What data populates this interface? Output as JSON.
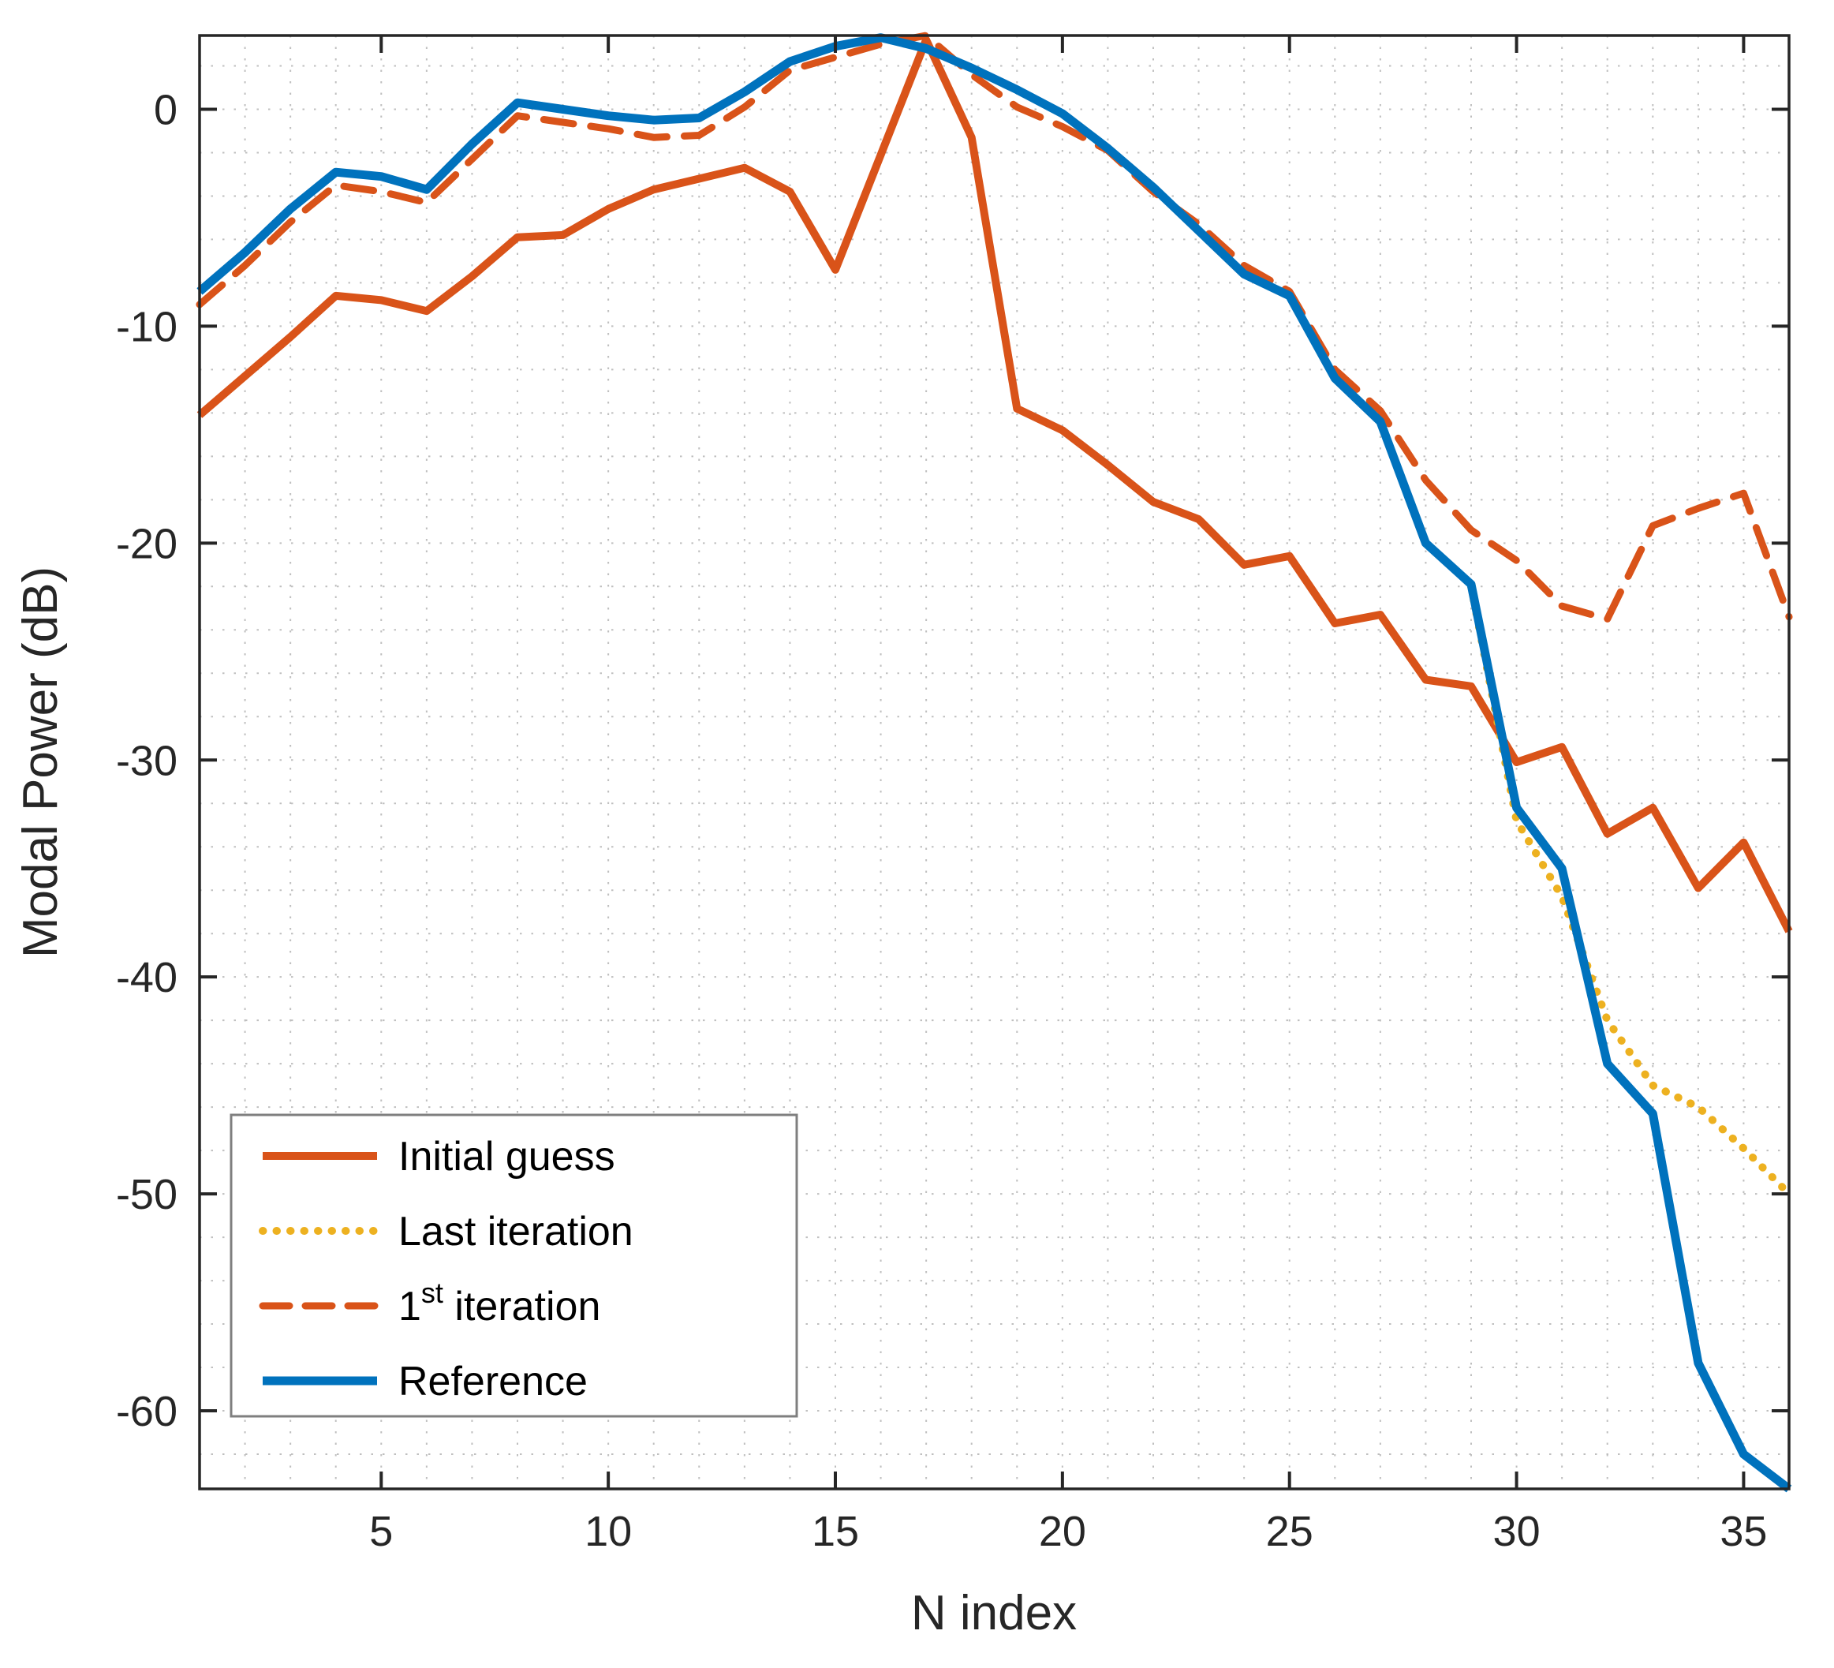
{
  "chart_data": {
    "type": "line",
    "title": "",
    "xlabel": "N index",
    "ylabel": "Modal Power (dB)",
    "xlim": [
      1,
      36
    ],
    "ylim": [
      -63.6,
      3.4
    ],
    "xticks": [
      5,
      10,
      15,
      20,
      25,
      30,
      35
    ],
    "yticks": [
      0,
      -10,
      -20,
      -30,
      -40,
      -50,
      -60
    ],
    "grid": {
      "minor_x_step": 1,
      "minor_y_step": 2,
      "style": "dotted",
      "color": "#bfbfbf"
    },
    "axes_color": "#262626",
    "background": "#ffffff",
    "legend_position": "lower-left",
    "x": [
      1,
      2,
      3,
      4,
      5,
      6,
      7,
      8,
      9,
      10,
      11,
      12,
      13,
      14,
      15,
      16,
      17,
      18,
      19,
      20,
      21,
      22,
      23,
      24,
      25,
      26,
      27,
      28,
      29,
      30,
      31,
      32,
      33,
      34,
      35,
      36
    ],
    "series": [
      {
        "name": "Initial guess",
        "color": "#D95319",
        "line": "solid",
        "width": 10,
        "values": [
          -14.1,
          -12.3,
          -10.5,
          -8.6,
          -8.8,
          -9.3,
          -7.7,
          -5.9,
          -5.8,
          -4.6,
          -3.7,
          -3.2,
          -2.7,
          -3.8,
          -7.4,
          -2.1,
          3.2,
          -1.3,
          -13.8,
          -14.8,
          -16.4,
          -18.1,
          -18.9,
          -21.0,
          -20.6,
          -23.7,
          -23.3,
          -26.3,
          -26.6,
          -30.1,
          -29.4,
          -33.4,
          -32.2,
          -35.9,
          -33.8,
          -37.9
        ]
      },
      {
        "name": "Last iteration",
        "color": "#EDB120",
        "line": "dotted",
        "width": 10,
        "x": [
          29,
          30,
          31,
          32,
          33,
          34,
          35,
          36
        ],
        "values": [
          -22.0,
          -32.8,
          -36.3,
          -42.0,
          -45.0,
          -46.0,
          -47.9,
          -50.0
        ],
        "note": "hidden behind Reference for N<29"
      },
      {
        "name": "1st iteration",
        "label_parts": {
          "pre": "1",
          "sup": "st",
          "post": " iteration"
        },
        "color": "#D95319",
        "line": "dashed",
        "width": 9,
        "values": [
          -9.0,
          -7.2,
          -5.2,
          -3.5,
          -3.8,
          -4.3,
          -2.3,
          -0.3,
          -0.6,
          -0.9,
          -1.3,
          -1.2,
          0.1,
          1.8,
          2.4,
          3.0,
          3.4,
          1.6,
          0.1,
          -0.8,
          -1.9,
          -3.8,
          -5.3,
          -7.2,
          -8.4,
          -12.0,
          -13.9,
          -17.1,
          -19.4,
          -20.8,
          -22.9,
          -23.5,
          -19.2,
          -18.4,
          -17.7,
          -23.4
        ]
      },
      {
        "name": "Reference",
        "color": "#0072BD",
        "line": "solid",
        "width": 11,
        "values": [
          -8.4,
          -6.6,
          -4.6,
          -2.9,
          -3.1,
          -3.7,
          -1.6,
          0.3,
          0.0,
          -0.3,
          -0.5,
          -0.4,
          0.8,
          2.2,
          2.9,
          3.3,
          2.8,
          1.9,
          0.9,
          -0.2,
          -1.8,
          -3.6,
          -5.6,
          -7.6,
          -8.6,
          -12.4,
          -14.4,
          -20.0,
          -21.9,
          -32.2,
          -35.0,
          -44.0,
          -46.3,
          -57.8,
          -62.0,
          -63.6
        ]
      }
    ],
    "legend_order": [
      0,
      1,
      2,
      3
    ]
  }
}
